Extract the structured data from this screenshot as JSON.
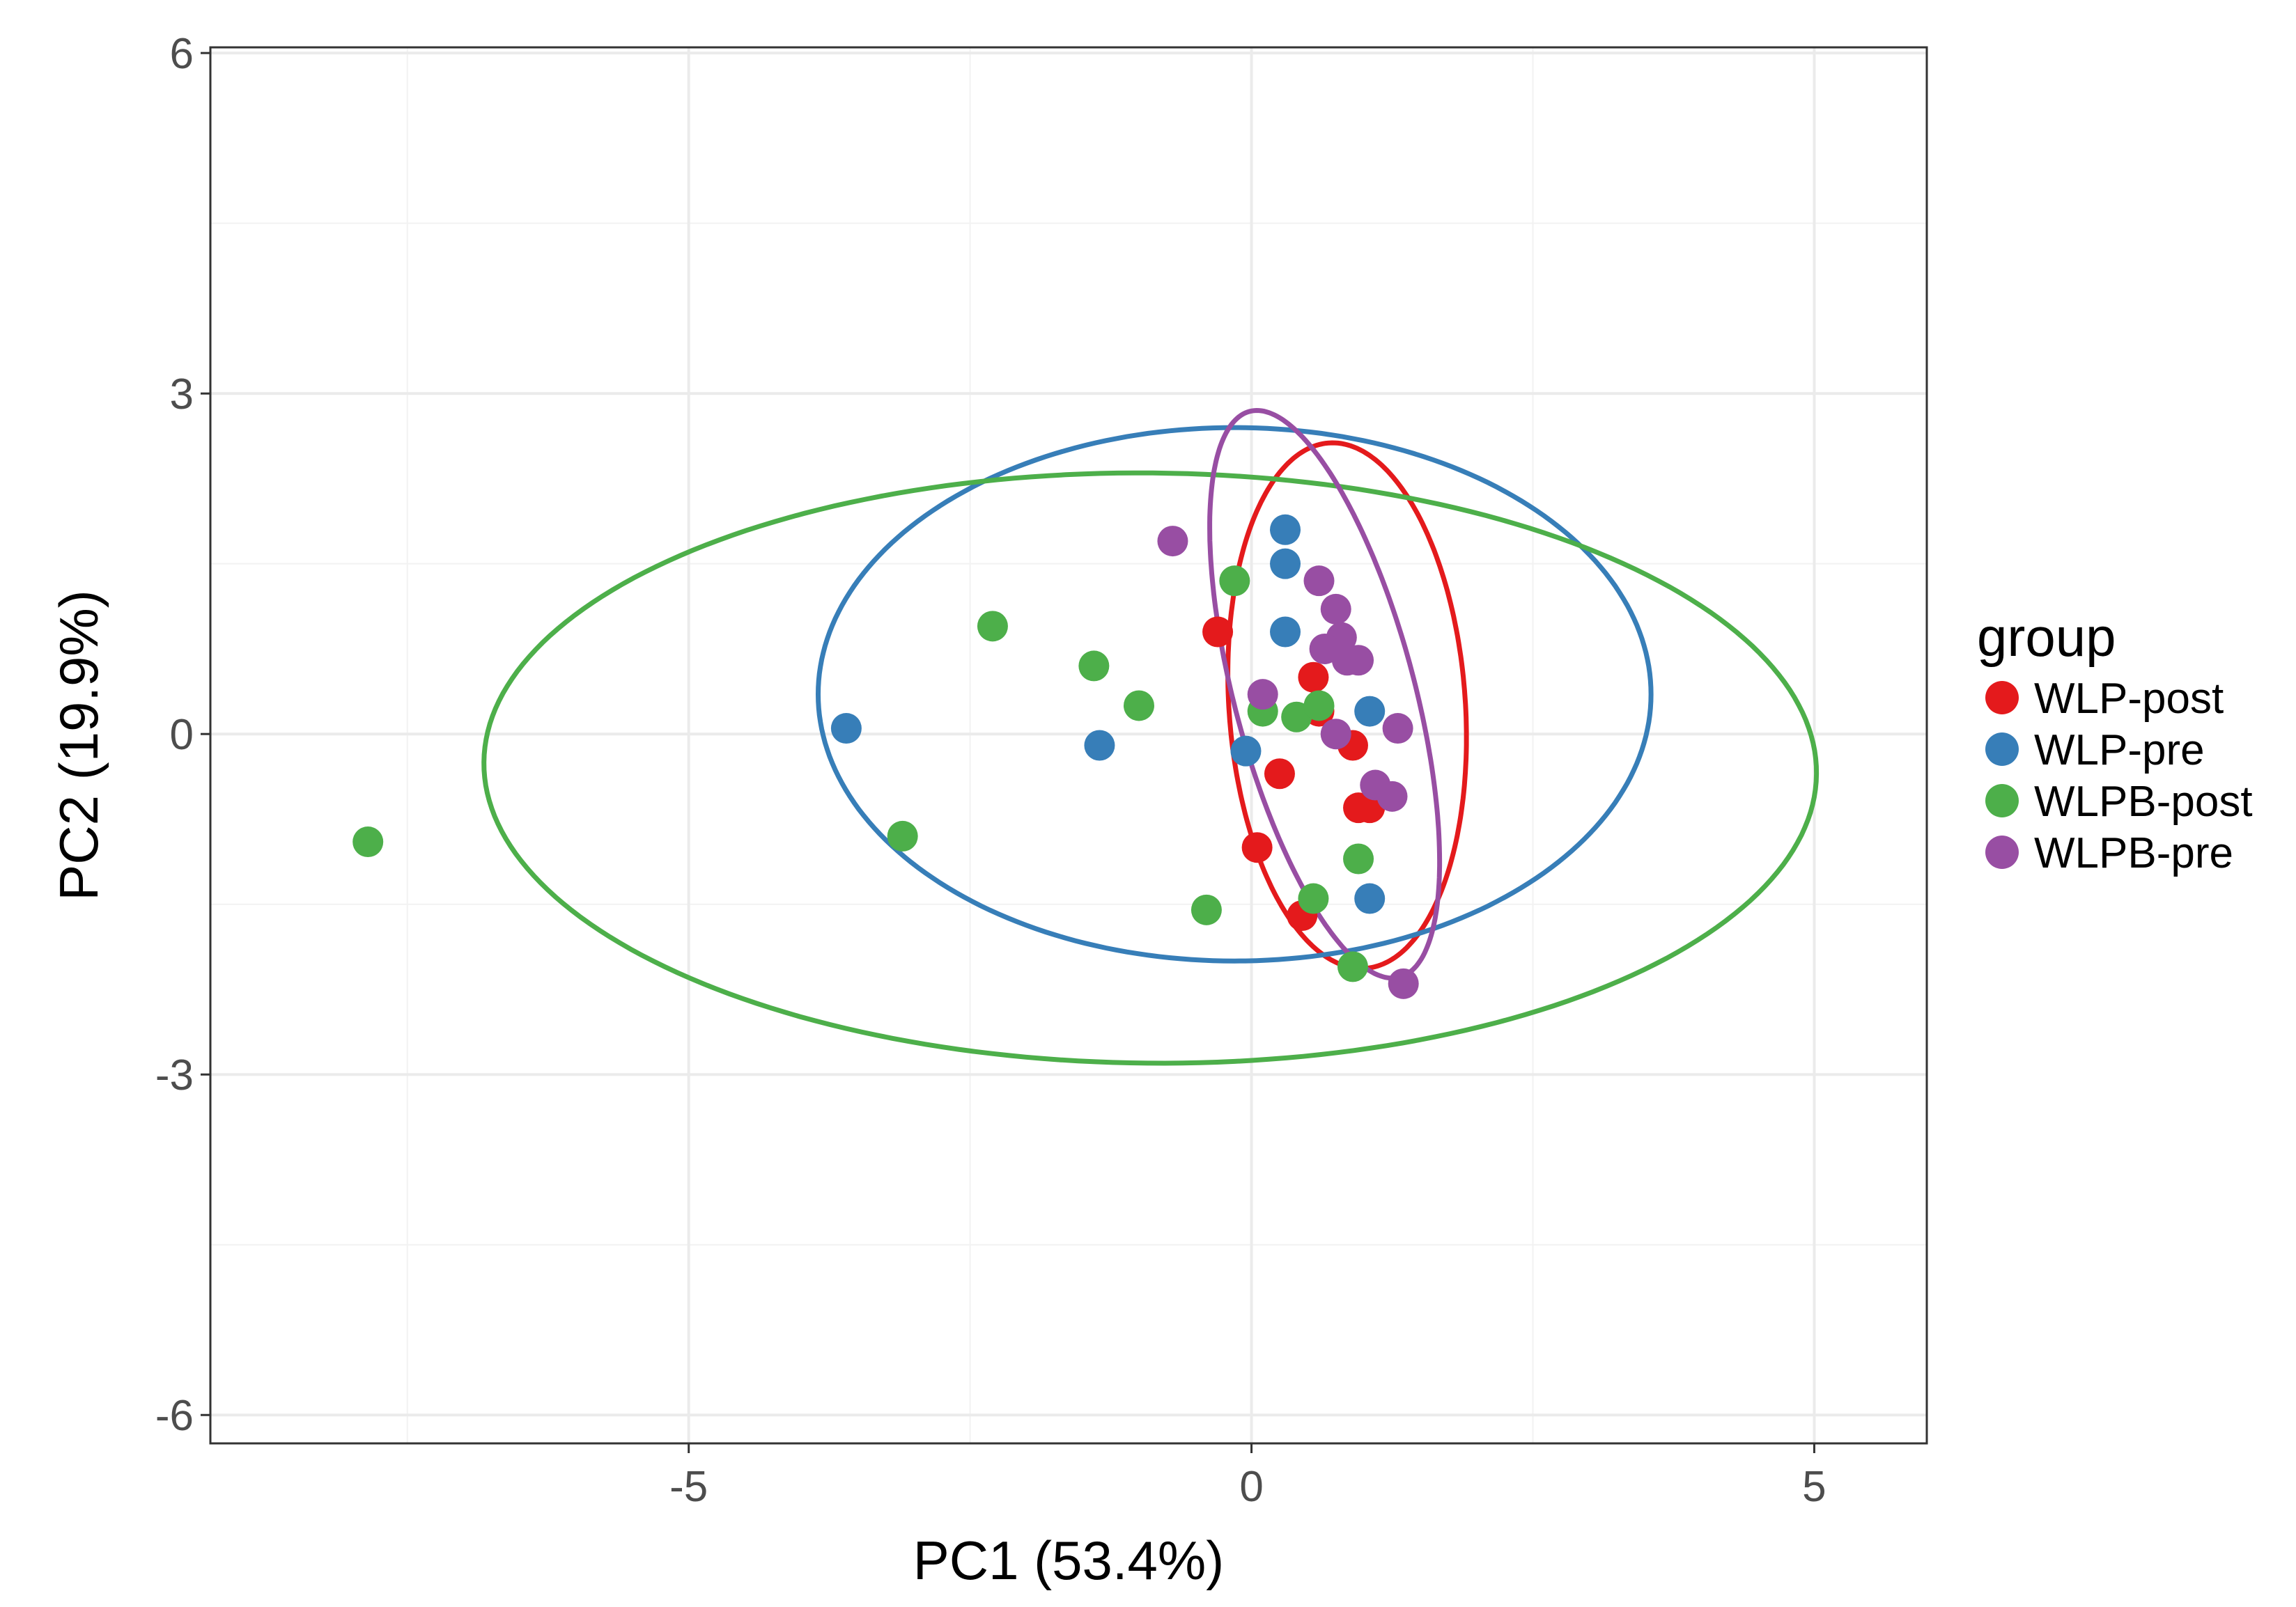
{
  "chart_data": {
    "type": "scatter",
    "title": "",
    "xlabel": "PC1 (53.4%)",
    "ylabel": "PC2 (19.9%)",
    "xlim": [
      -9.25,
      6.0
    ],
    "ylim": [
      -6.25,
      6.05
    ],
    "xticks": [
      -5,
      0,
      5
    ],
    "xtick_labels": [
      "-5",
      "0",
      "5"
    ],
    "yticks": [
      -6,
      -3,
      0,
      3,
      6
    ],
    "ytick_labels": [
      "-6",
      "-3",
      "0",
      "3",
      "6"
    ],
    "grid": true,
    "legend": {
      "title": "group",
      "position": "right"
    },
    "series": [
      {
        "name": "WLP-post",
        "color": "#e41a1c",
        "points": [
          [
            -0.3,
            0.9
          ],
          [
            0.55,
            0.5
          ],
          [
            0.6,
            0.2
          ],
          [
            0.25,
            -0.35
          ],
          [
            0.9,
            -0.1
          ],
          [
            0.95,
            -0.65
          ],
          [
            1.05,
            -0.65
          ],
          [
            0.05,
            -1.0
          ],
          [
            0.45,
            -1.6
          ]
        ],
        "ellipse": {
          "center": [
            0.85,
            0.25
          ],
          "semi_major": 2.32,
          "semi_minor": 1.05,
          "angle_deg": -86
        }
      },
      {
        "name": "WLP-pre",
        "color": "#377eb8",
        "points": [
          [
            -3.6,
            0.05
          ],
          [
            -1.35,
            -0.1
          ],
          [
            0.3,
            1.8
          ],
          [
            0.3,
            1.5
          ],
          [
            0.3,
            0.9
          ],
          [
            1.05,
            0.2
          ],
          [
            -0.05,
            -0.15
          ],
          [
            1.05,
            -1.45
          ]
        ],
        "ellipse": {
          "center": [
            -0.15,
            0.35
          ],
          "semi_major": 3.7,
          "semi_minor": 2.35,
          "angle_deg": 0
        }
      },
      {
        "name": "WLPB-post",
        "color": "#4daf4a",
        "points": [
          [
            -7.85,
            -0.95
          ],
          [
            -3.1,
            -0.9
          ],
          [
            -2.3,
            0.95
          ],
          [
            -1.4,
            0.6
          ],
          [
            -1.0,
            0.25
          ],
          [
            -0.15,
            1.35
          ],
          [
            0.1,
            0.2
          ],
          [
            0.4,
            0.15
          ],
          [
            0.6,
            0.25
          ],
          [
            0.95,
            -1.1
          ],
          [
            0.55,
            -1.45
          ],
          [
            -0.4,
            -1.55
          ],
          [
            0.9,
            -2.05
          ]
        ],
        "ellipse": {
          "center": [
            -0.9,
            -0.3
          ],
          "semi_major": 5.92,
          "semi_minor": 2.6,
          "angle_deg": -0.5
        }
      },
      {
        "name": "WLPB-pre",
        "color": "#984ea3",
        "points": [
          [
            -0.7,
            1.7
          ],
          [
            0.6,
            1.35
          ],
          [
            0.75,
            1.1
          ],
          [
            0.8,
            0.85
          ],
          [
            0.65,
            0.75
          ],
          [
            0.85,
            0.65
          ],
          [
            0.95,
            0.65
          ],
          [
            0.1,
            0.35
          ],
          [
            0.75,
            0.0
          ],
          [
            1.3,
            0.05
          ],
          [
            1.1,
            -0.45
          ],
          [
            1.25,
            -0.55
          ],
          [
            1.35,
            -2.2
          ]
        ],
        "ellipse": {
          "center": [
            0.65,
            0.35
          ],
          "semi_major": 2.58,
          "semi_minor": 0.8,
          "angle_deg": -75
        }
      }
    ]
  }
}
